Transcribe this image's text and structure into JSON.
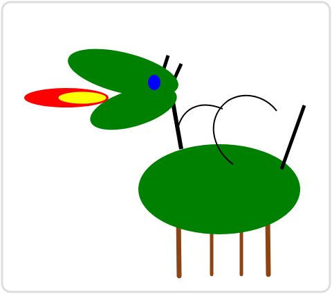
{
  "scene": {
    "colors": {
      "background": "#ffffff",
      "frame_border": "#dddddd",
      "body": "#008000",
      "head": "#008000",
      "eye": "#0000ff",
      "flame_outer": "#ff0000",
      "flame_inner": "#ffff00",
      "neck": "#000000",
      "tail": "#000000",
      "legs": "#8b4513"
    },
    "icons": {
      "creature": "dragon-creature-icon",
      "flame": "fire-breath-icon"
    }
  }
}
